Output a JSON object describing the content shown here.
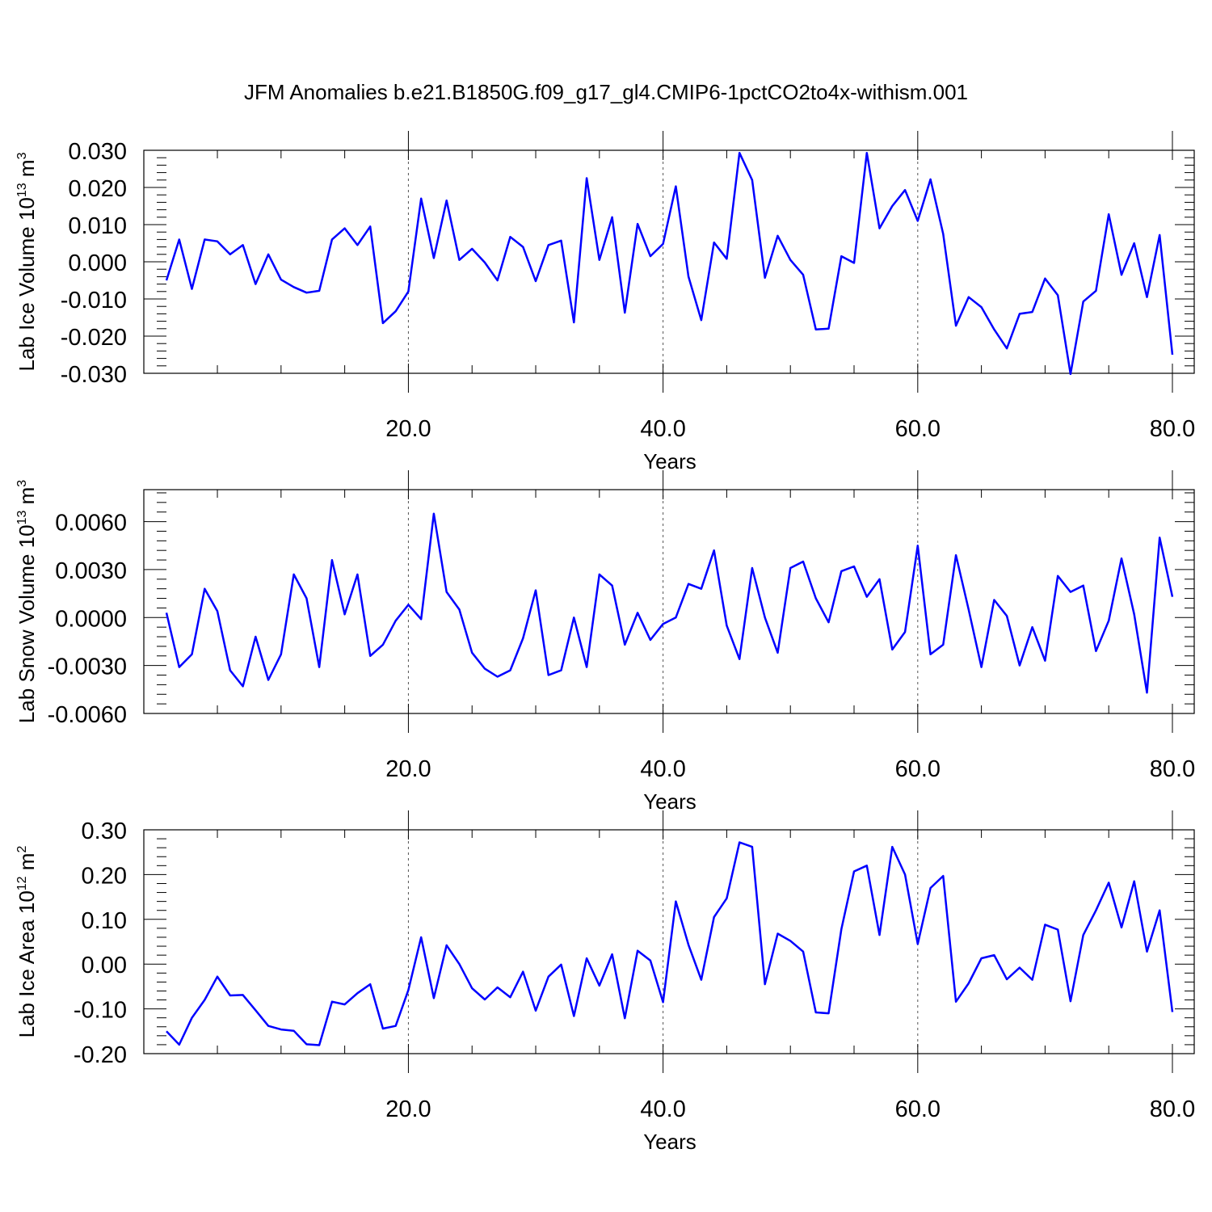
{
  "title": "JFM Anomalies b.e21.B1850G.f09_g17_gl4.CMIP6-1pctCO2to4x-withism.001",
  "chart_data": [
    {
      "type": "line",
      "xlabel": "Years",
      "ylabel": "Lab Ice Volume 10",
      "ylabel_exp": "13",
      "ylabel_unit": "m",
      "ylabel_unit_exp": "3",
      "xlim": [
        1,
        80
      ],
      "ylim": [
        -0.03,
        0.03
      ],
      "xticks": [
        "20.0",
        "40.0",
        "60.0",
        "80.0"
      ],
      "yticks": [
        "0.030",
        "0.020",
        "0.010",
        "0.000",
        "-0.010",
        "-0.020",
        "-0.030"
      ],
      "grid": "dashed vertical at 20, 40, 60",
      "series": [
        {
          "color": "#0000ff",
          "x": [
            1,
            2,
            3,
            4,
            5,
            6,
            7,
            8,
            9,
            10,
            11,
            12,
            13,
            14,
            15,
            16,
            17,
            18,
            19,
            20,
            21,
            22,
            23,
            24,
            25,
            26,
            27,
            28,
            29,
            30,
            31,
            32,
            33,
            34,
            35,
            36,
            37,
            38,
            39,
            40,
            41,
            42,
            43,
            44,
            45,
            46,
            47,
            48,
            49,
            50,
            51,
            52,
            53,
            54,
            55,
            56,
            57,
            58,
            59,
            60,
            61,
            62,
            63,
            64,
            65,
            66,
            67,
            68,
            69,
            70,
            71,
            72,
            73,
            74,
            75,
            76,
            77,
            78,
            79,
            80
          ],
          "y": [
            -0.005,
            0.006,
            -0.0073,
            0.006,
            0.0055,
            0.002,
            0.0045,
            -0.006,
            0.002,
            -0.0048,
            -0.0068,
            -0.0083,
            -0.0078,
            0.006,
            0.009,
            0.0045,
            0.0095,
            -0.0165,
            -0.0133,
            -0.008,
            0.017,
            0.001,
            0.0165,
            0.0005,
            0.0035,
            -0.0002,
            -0.005,
            0.0067,
            0.004,
            -0.0052,
            0.0045,
            0.0057,
            -0.0163,
            0.0225,
            0.0005,
            0.012,
            -0.0137,
            0.0102,
            0.0015,
            0.0048,
            0.0203,
            -0.004,
            -0.0157,
            0.0052,
            0.0008,
            0.0293,
            0.022,
            -0.0043,
            0.007,
            0.0005,
            -0.0035,
            -0.0182,
            -0.018,
            0.0015,
            -0.0003,
            0.0293,
            0.009,
            0.015,
            0.0193,
            0.011,
            0.0222,
            0.0075,
            -0.0172,
            -0.0095,
            -0.0122,
            -0.0182,
            -0.0233,
            -0.014,
            -0.0135,
            -0.0045,
            -0.009,
            -0.0302,
            -0.0107,
            -0.0078,
            0.0128,
            -0.0035,
            0.005,
            -0.0095,
            0.0072,
            -0.025
          ]
        }
      ]
    },
    {
      "type": "line",
      "xlabel": "Years",
      "ylabel": "Lab Snow Volume 10",
      "ylabel_exp": "13",
      "ylabel_unit": "m",
      "ylabel_unit_exp": "3",
      "xlim": [
        1,
        80
      ],
      "ylim": [
        -0.006,
        0.008
      ],
      "xticks": [
        "20.0",
        "40.0",
        "60.0",
        "80.0"
      ],
      "yticks": [
        "0.0060",
        "0.0030",
        "0.0000",
        "-0.0030",
        "-0.0060"
      ],
      "grid": "dashed vertical at 20, 40, 60",
      "series": [
        {
          "color": "#0000ff",
          "x": [
            1,
            2,
            3,
            4,
            5,
            6,
            7,
            8,
            9,
            10,
            11,
            12,
            13,
            14,
            15,
            16,
            17,
            18,
            19,
            20,
            21,
            22,
            23,
            24,
            25,
            26,
            27,
            28,
            29,
            30,
            31,
            32,
            33,
            34,
            35,
            36,
            37,
            38,
            39,
            40,
            41,
            42,
            43,
            44,
            45,
            46,
            47,
            48,
            49,
            50,
            51,
            52,
            53,
            54,
            55,
            56,
            57,
            58,
            59,
            60,
            61,
            62,
            63,
            64,
            65,
            66,
            67,
            68,
            69,
            70,
            71,
            72,
            73,
            74,
            75,
            76,
            77,
            78,
            79,
            80
          ],
          "y": [
            0.0003,
            -0.0031,
            -0.0023,
            0.0018,
            0.0004,
            -0.0033,
            -0.0043,
            -0.0012,
            -0.0039,
            -0.0023,
            0.0027,
            0.0012,
            -0.0031,
            0.0036,
            0.0002,
            0.0027,
            -0.0024,
            -0.0017,
            -0.0002,
            0.0008,
            -0.0001,
            0.0065,
            0.0016,
            0.0005,
            -0.0022,
            -0.0032,
            -0.0037,
            -0.0033,
            -0.0013,
            0.0017,
            -0.0036,
            -0.0033,
            0.0,
            -0.0031,
            0.0027,
            0.002,
            -0.0017,
            0.0003,
            -0.0014,
            -0.0004,
            0.0,
            0.0021,
            0.0018,
            0.0042,
            -0.0005,
            -0.0026,
            0.0031,
            0.0,
            -0.0022,
            0.0031,
            0.0035,
            0.0012,
            -0.0003,
            0.0029,
            0.0032,
            0.0013,
            0.0024,
            -0.002,
            -0.0009,
            0.0045,
            -0.0023,
            -0.0017,
            0.0039,
            0.0005,
            -0.0031,
            0.0011,
            0.0001,
            -0.003,
            -0.0006,
            -0.0027,
            0.0026,
            0.0016,
            0.002,
            -0.0021,
            -0.0002,
            0.0037,
            0.0002,
            -0.0047,
            0.005,
            0.0013
          ]
        }
      ]
    },
    {
      "type": "line",
      "xlabel": "Years",
      "ylabel": "Lab Ice Area 10",
      "ylabel_exp": "12",
      "ylabel_unit": "m",
      "ylabel_unit_exp": "2",
      "xlim": [
        1,
        80
      ],
      "ylim": [
        -0.2,
        0.3
      ],
      "xticks": [
        "20.0",
        "40.0",
        "60.0",
        "80.0"
      ],
      "yticks": [
        "0.30",
        "0.20",
        "0.10",
        "0.00",
        "-0.10",
        "-0.20"
      ],
      "grid": "dashed vertical at 20, 40, 60",
      "series": [
        {
          "color": "#0000ff",
          "x": [
            1,
            2,
            3,
            4,
            5,
            6,
            7,
            8,
            9,
            10,
            11,
            12,
            13,
            14,
            15,
            16,
            17,
            18,
            19,
            20,
            21,
            22,
            23,
            24,
            25,
            26,
            27,
            28,
            29,
            30,
            31,
            32,
            33,
            34,
            35,
            36,
            37,
            38,
            39,
            40,
            41,
            42,
            43,
            44,
            45,
            46,
            47,
            48,
            49,
            50,
            51,
            52,
            53,
            54,
            55,
            56,
            57,
            58,
            59,
            60,
            61,
            62,
            63,
            64,
            65,
            66,
            67,
            68,
            69,
            70,
            71,
            72,
            73,
            74,
            75,
            76,
            77,
            78,
            79,
            80
          ],
          "y": [
            -0.15,
            -0.18,
            -0.12,
            -0.08,
            -0.028,
            -0.07,
            -0.069,
            -0.103,
            -0.138,
            -0.146,
            -0.149,
            -0.179,
            -0.181,
            -0.084,
            -0.09,
            -0.065,
            -0.045,
            -0.144,
            -0.138,
            -0.058,
            0.06,
            -0.076,
            0.042,
            0.0,
            -0.054,
            -0.079,
            -0.052,
            -0.074,
            -0.017,
            -0.104,
            -0.028,
            -0.001,
            -0.116,
            0.013,
            -0.048,
            0.022,
            -0.121,
            0.03,
            0.008,
            -0.085,
            0.14,
            0.043,
            -0.035,
            0.105,
            0.147,
            0.272,
            0.262,
            -0.045,
            0.068,
            0.052,
            0.028,
            -0.108,
            -0.11,
            0.078,
            0.207,
            0.22,
            0.065,
            0.262,
            0.2,
            0.045,
            0.17,
            0.197,
            -0.084,
            -0.043,
            0.013,
            0.02,
            -0.034,
            -0.008,
            -0.035,
            0.088,
            0.077,
            -0.083,
            0.065,
            0.12,
            0.182,
            0.082,
            0.185,
            0.028,
            0.12,
            -0.107
          ]
        }
      ]
    }
  ]
}
